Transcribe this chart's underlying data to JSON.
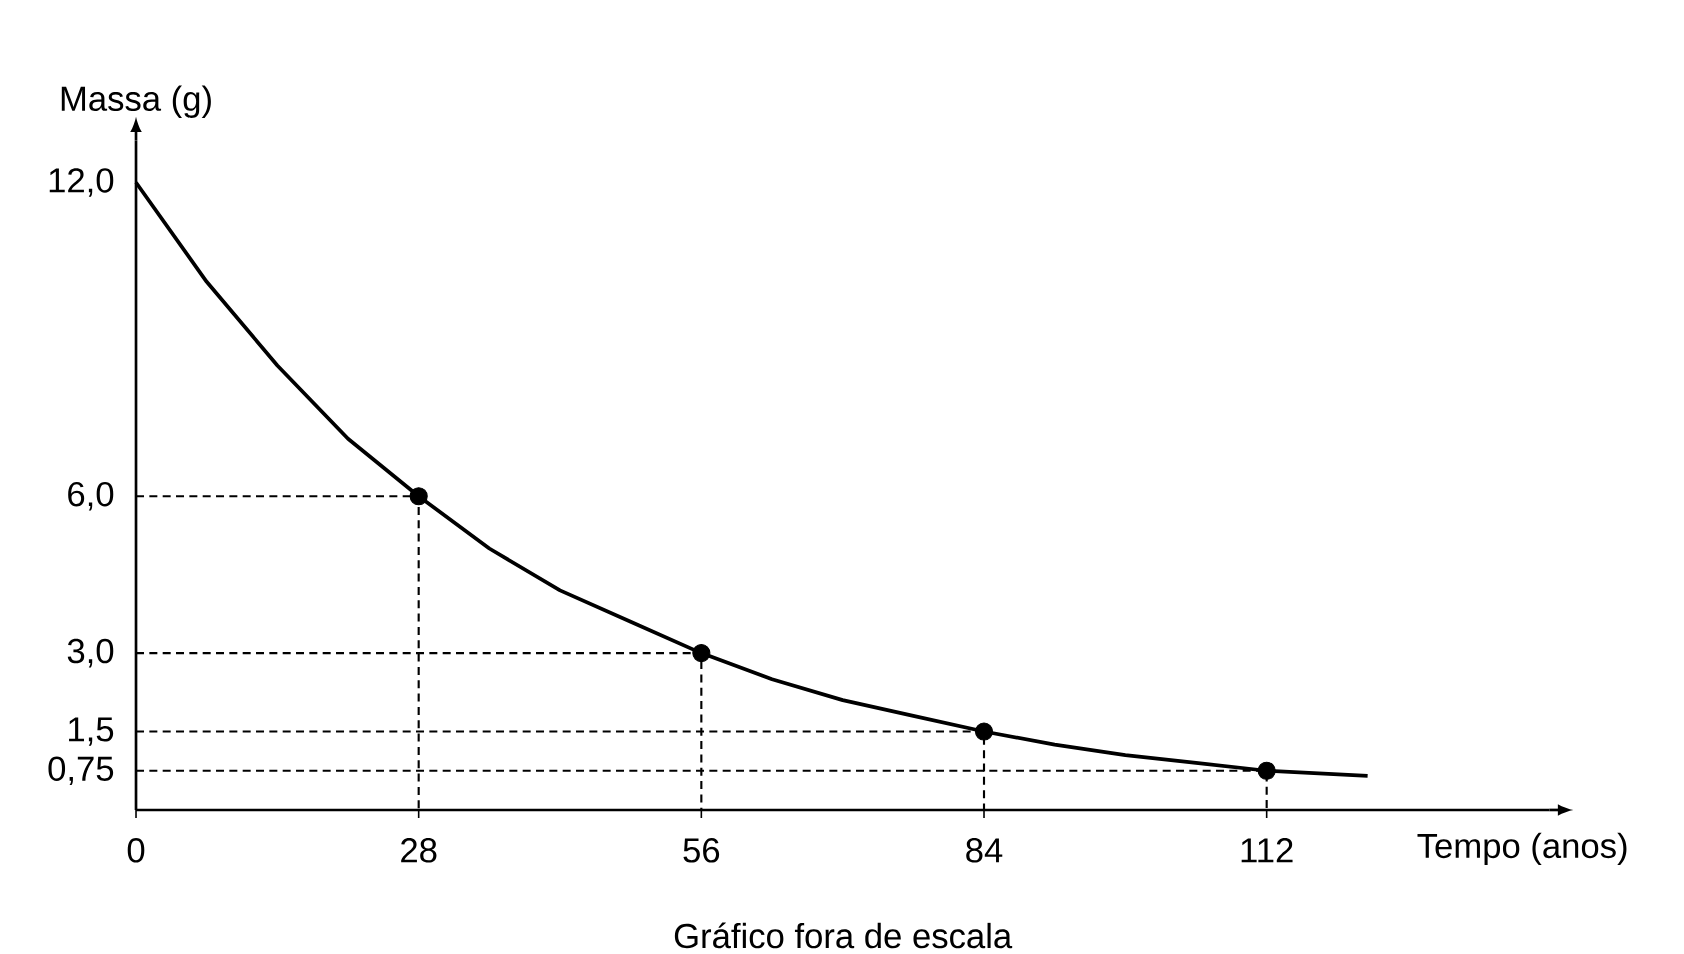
{
  "chart_data": {
    "type": "line",
    "xlabel": "Tempo (anos)",
    "ylabel": "Massa (g)",
    "annotations": [
      "Gráfico fora de escala"
    ],
    "xlim": [
      0,
      140
    ],
    "ylim": [
      0,
      12.8
    ],
    "xticks": [
      0,
      28,
      56,
      84,
      112
    ],
    "yticks": [
      {
        "value": 0.75,
        "label": "0,75"
      },
      {
        "value": 1.5,
        "label": "1,5"
      },
      {
        "value": 3,
        "label": "3,0"
      },
      {
        "value": 6,
        "label": "6,0"
      },
      {
        "value": 12,
        "label": "12,0"
      }
    ],
    "series": [
      {
        "color": "#000000",
        "line_style": "solid",
        "marker": "none",
        "x": [
          0,
          7,
          14,
          21,
          28,
          35,
          42,
          49,
          56,
          63,
          70,
          77,
          84,
          91,
          98,
          105,
          112,
          122
        ],
        "values": [
          12,
          10.1,
          8.5,
          7.1,
          6,
          5.0,
          4.2,
          3.6,
          3,
          2.5,
          2.1,
          1.8,
          1.5,
          1.25,
          1.05,
          0.9,
          0.75,
          0.65
        ]
      },
      {
        "type": "scatter",
        "color": "#000000",
        "marker": "circle",
        "x": [
          28,
          56,
          84,
          112
        ],
        "values": [
          6,
          3,
          1.5,
          0.75
        ]
      },
      {
        "type": "line",
        "color": "#000000",
        "line_style": "dashed",
        "marker": "none",
        "x": [
          0,
          28,
          28
        ],
        "values": [
          6,
          6,
          0
        ]
      },
      {
        "type": "line",
        "color": "#000000",
        "line_style": "dashed",
        "marker": "none",
        "x": [
          0,
          56,
          56
        ],
        "values": [
          3,
          3,
          0
        ]
      },
      {
        "type": "line",
        "color": "#000000",
        "line_style": "dashed",
        "marker": "none",
        "x": [
          0,
          84,
          84
        ],
        "values": [
          1.5,
          1.5,
          0
        ]
      },
      {
        "type": "line",
        "color": "#000000",
        "line_style": "dashed",
        "marker": "none",
        "x": [
          0,
          112,
          112
        ],
        "values": [
          0.75,
          0.75,
          0
        ]
      }
    ]
  }
}
